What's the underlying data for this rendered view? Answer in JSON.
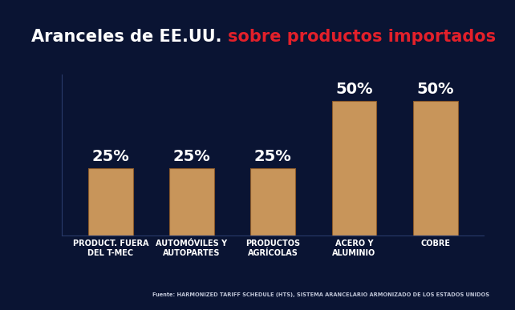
{
  "chart_data": {
    "type": "bar",
    "title": "Aranceles de EE.UU.",
    "subtitle": "sobre productos importados",
    "categories": [
      "PRODUCT. FUERA DEL T-MEC",
      "AUTOMÓVILES Y AUTOPARTES",
      "PRODUCTOS AGRÍCOLAS",
      "ACERO Y ALUMINIO",
      "COBRE"
    ],
    "values": [
      25,
      25,
      25,
      50,
      50
    ],
    "value_labels": [
      "25%",
      "25%",
      "25%",
      "50%",
      "50%"
    ],
    "data_labels": true,
    "color": "#c8955a",
    "ylim": [
      0,
      60
    ],
    "tick_labels": "x",
    "grid": false,
    "source": "Fuente: HARMONIZED TARIFF SCHEDULE (HTS), SISTEMA ARANCELARIO ARMONIZADO DE LOS ESTADOS UNIDOS"
  }
}
